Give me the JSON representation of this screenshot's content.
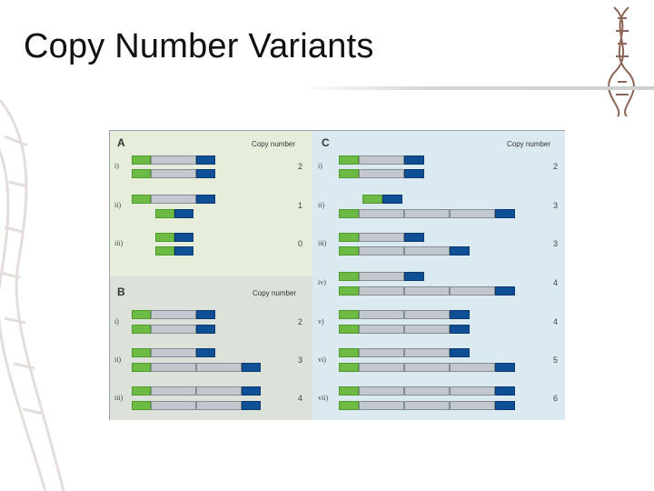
{
  "slide": {
    "title": "Copy Number Variants"
  },
  "colors": {
    "green_segment": "#6dbb45",
    "grey_segment": "#c3c8ce",
    "blue_segment": "#0f4f96",
    "panel_a_bg": "#e6eedb",
    "panel_b_bg": "#dce2da",
    "panel_c_bg": "#daeaf0"
  },
  "figure": {
    "panel_a": {
      "letter": "A",
      "header": "Copy number",
      "rows": [
        {
          "label": "i)",
          "copy_number": "2"
        },
        {
          "label": "ii)",
          "copy_number": "1"
        },
        {
          "label": "iii)",
          "copy_number": "0"
        }
      ]
    },
    "panel_b": {
      "letter": "B",
      "header": "Copy number",
      "rows": [
        {
          "label": "i)",
          "copy_number": "2"
        },
        {
          "label": "ii)",
          "copy_number": "3"
        },
        {
          "label": "iii)",
          "copy_number": "4"
        }
      ]
    },
    "panel_c": {
      "letter": "C",
      "header": "Copy number",
      "rows": [
        {
          "label": "i)",
          "copy_number": "2"
        },
        {
          "label": "ii)",
          "copy_number": "3"
        },
        {
          "label": "iii)",
          "copy_number": "3"
        },
        {
          "label": "iv)",
          "copy_number": "4"
        },
        {
          "label": "v)",
          "copy_number": "4"
        },
        {
          "label": "vi)",
          "copy_number": "5"
        },
        {
          "label": "vii)",
          "copy_number": "6"
        }
      ]
    }
  }
}
